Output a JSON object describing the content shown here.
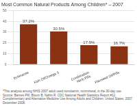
{
  "chart_data": {
    "type": "bar",
    "title": "Most Common Natural Products Among Children* – 2007",
    "categories": [
      "Echinacea",
      "Fish Oil/Omega 3",
      "Combination\nHerb Pills",
      "Flaxseed Oil/Pills"
    ],
    "values": [
      37.2,
      30.5,
      17.9,
      16.7
    ],
    "value_labels": [
      "37.2%",
      "30.5%",
      "17.9%",
      "16.7%"
    ],
    "data_labels": true,
    "color": "#8B3213",
    "ylim": [
      0,
      50
    ],
    "yticks": [
      0,
      10,
      20,
      30,
      40,
      50
    ],
    "grid": true,
    "annotations": [
      "*This analysis among NHIS 2007 adult used nonvitamin, nonmineral, in the 30-day use.",
      "Source: Barnes PM, Bloom B, Nahin R. CDC National Health Statistics Report #12. Complementary and Alternative Medicine Use Among Adults and Children: United States, 2007. December 2008."
    ]
  }
}
